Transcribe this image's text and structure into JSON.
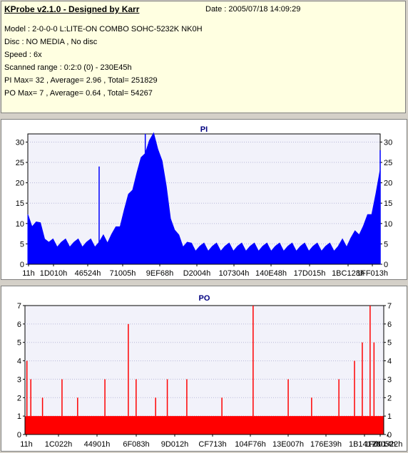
{
  "info": {
    "title": "KProbe v2.1.0 - Designed by Karr",
    "date": "Date : 2005/07/18 14:09:29",
    "lines": [
      "Model : 2-0-0-0 L:LITE-ON COMBO SOHC-5232K NK0H",
      "Disc : NO MEDIA , No disc",
      "Speed : 6x",
      "Scanned range : 0:2:0 (0) - 230E45h",
      "PI Max= 32 , Average= 2.96 , Total= 251829",
      "PO Max= 7 , Average= 0.64 , Total= 54267"
    ]
  },
  "chart_data": [
    {
      "type": "area",
      "title": "PI",
      "color": "#0000ff",
      "ylim": [
        0,
        32
      ],
      "y_ticks": [
        0,
        5,
        10,
        15,
        20,
        25,
        30
      ],
      "x_tick_labels": [
        "11h",
        "1D010h",
        "46524h",
        "71005h",
        "9EF68h",
        "D2004h",
        "107304h",
        "140E48h",
        "17D015h",
        "1BC128h",
        "1FF013h"
      ],
      "x_start_label": "0:2:0",
      "x_end_label": "230E45h",
      "series": [
        {
          "values": [
            11,
            10,
            10,
            9,
            7,
            5,
            5,
            5,
            5,
            5,
            5,
            5,
            5,
            5,
            5,
            5,
            5,
            5,
            6,
            6,
            7,
            8,
            10,
            13,
            16,
            19,
            22,
            25,
            28,
            30,
            31,
            29,
            25,
            18,
            12,
            8,
            6,
            5,
            5,
            4,
            4,
            4,
            4,
            4,
            4,
            4,
            4,
            4,
            4,
            4,
            4,
            4,
            4,
            4,
            4,
            4,
            4,
            4,
            4,
            4,
            4,
            4,
            4,
            4,
            4,
            4,
            4,
            4,
            4,
            4,
            4,
            4,
            4,
            4,
            4,
            5,
            5,
            6,
            7,
            8,
            9,
            11,
            13,
            17,
            22
          ],
          "spikes": [
            {
              "index": 17,
              "value": 24
            },
            {
              "index": 28,
              "value": 32
            },
            {
              "index": 84,
              "value": 28
            }
          ]
        }
      ]
    },
    {
      "type": "bar",
      "title": "PO",
      "color": "#ff0000",
      "ylim": [
        0,
        7
      ],
      "y_ticks": [
        0,
        1,
        2,
        3,
        4,
        5,
        6,
        7
      ],
      "x_tick_labels": [
        "11h",
        "1C022h",
        "44901h",
        "6F083h",
        "9D012h",
        "CF713h",
        "104F76h",
        "13E007h",
        "176E39h",
        "1B1417h",
        "1F0014h",
        "230522h"
      ],
      "x_end_label": "230522h",
      "series": [
        {
          "baseline": 1,
          "spikes": [
            {
              "index": 0,
              "value": 4
            },
            {
              "index": 1,
              "value": 3
            },
            {
              "index": 4,
              "value": 2
            },
            {
              "index": 9,
              "value": 3
            },
            {
              "index": 13,
              "value": 2
            },
            {
              "index": 20,
              "value": 3
            },
            {
              "index": 26,
              "value": 6
            },
            {
              "index": 28,
              "value": 3
            },
            {
              "index": 33,
              "value": 2
            },
            {
              "index": 36,
              "value": 3
            },
            {
              "index": 41,
              "value": 3
            },
            {
              "index": 50,
              "value": 2
            },
            {
              "index": 58,
              "value": 7
            },
            {
              "index": 67,
              "value": 3
            },
            {
              "index": 73,
              "value": 2
            },
            {
              "index": 80,
              "value": 3
            },
            {
              "index": 84,
              "value": 4
            },
            {
              "index": 86,
              "value": 5
            },
            {
              "index": 88,
              "value": 7
            },
            {
              "index": 89,
              "value": 5
            }
          ]
        }
      ]
    }
  ]
}
